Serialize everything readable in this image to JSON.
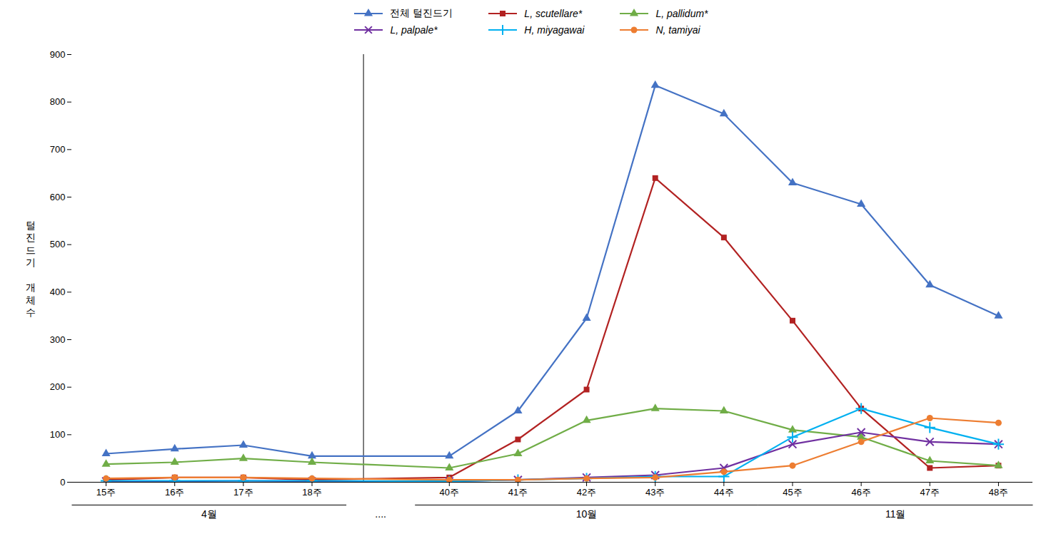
{
  "chart_data": {
    "type": "line",
    "categories": [
      "15주",
      "16주",
      "17주",
      "18주",
      "40주",
      "41주",
      "42주",
      "43주",
      "44주",
      "45주",
      "46주",
      "47주",
      "48주"
    ],
    "groups": [
      {
        "label": "4월",
        "from": "15주",
        "to": "18주"
      },
      {
        "label": "...."
      },
      {
        "label": "10월",
        "from": "40주",
        "to": "44주"
      },
      {
        "label": "11월",
        "from": "45주",
        "to": "48주"
      }
    ],
    "y_label": "털\n진\n드\n기\n\n개\n체\n수",
    "series": [
      {
        "name": "전체 털진드기",
        "color": "#4472C4",
        "marker": "triangle",
        "values": [
          60,
          70,
          78,
          55,
          55,
          150,
          345,
          835,
          775,
          630,
          585,
          415,
          350
        ]
      },
      {
        "name": "L, scutellare*",
        "color": "#B22222",
        "marker": "square",
        "values": [
          5,
          10,
          10,
          5,
          10,
          90,
          195,
          640,
          515,
          340,
          155,
          30,
          35
        ]
      },
      {
        "name": "L, pallidum*",
        "color": "#70AD47",
        "marker": "triangle",
        "values": [
          38,
          42,
          50,
          42,
          30,
          60,
          130,
          155,
          150,
          110,
          95,
          45,
          35
        ]
      },
      {
        "name": "L, palpale*",
        "color": "#7030A0",
        "marker": "x",
        "values": [
          2,
          2,
          3,
          2,
          2,
          5,
          10,
          15,
          30,
          80,
          105,
          85,
          80
        ]
      },
      {
        "name": "H, miyagawai",
        "color": "#00B0F0",
        "marker": "plus",
        "values": [
          3,
          3,
          3,
          3,
          2,
          5,
          8,
          12,
          12,
          95,
          155,
          115,
          80
        ]
      },
      {
        "name": "N, tamiyai",
        "color": "#ED7D31",
        "marker": "circle",
        "values": [
          8,
          10,
          10,
          8,
          5,
          5,
          8,
          10,
          22,
          35,
          85,
          135,
          125
        ]
      }
    ],
    "ylim": [
      0,
      900
    ],
    "yticks": [
      0,
      100,
      200,
      300,
      400,
      500,
      600,
      700,
      800,
      900
    ],
    "legend": "top",
    "grid": false
  }
}
